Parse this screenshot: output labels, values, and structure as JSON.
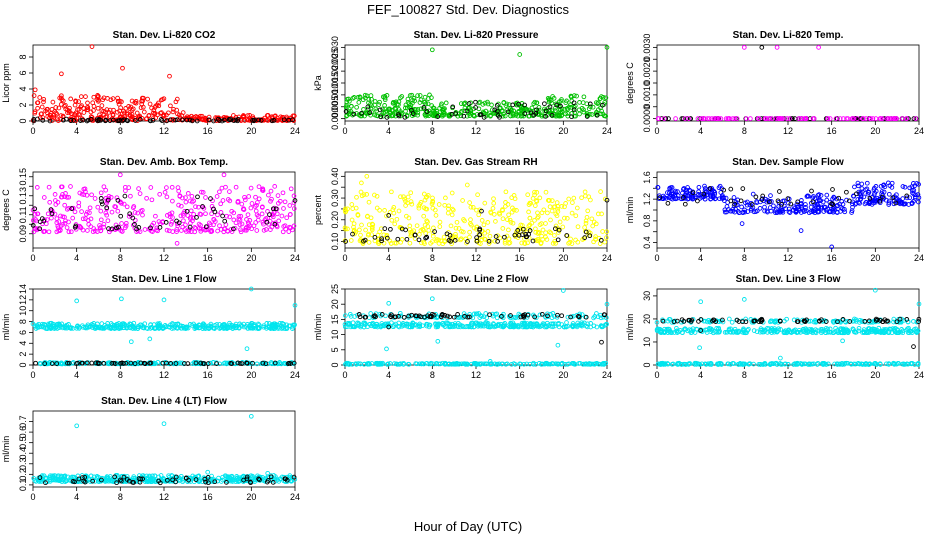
{
  "figure": {
    "title": "FEF_100827  Std. Dev. Diagnostics",
    "xlabel": "Hour of Day (UTC)"
  },
  "chart_data": [
    {
      "type": "scatter",
      "title": "Stan. Dev. Li-820 CO2",
      "ylabel": "Licor ppm",
      "xlim": [
        0,
        24
      ],
      "ylim": [
        0,
        9.5
      ],
      "xticks": [
        0,
        4,
        8,
        12,
        16,
        20,
        24
      ],
      "yticks": [
        0,
        2,
        4,
        6,
        8
      ],
      "ytick_labels": [
        "0",
        "2",
        "4",
        "6",
        "8"
      ],
      "series": [
        {
          "color": "#ff0000",
          "segments": [
            {
              "x0": 0,
              "x1": 6,
              "lo": 0.05,
              "hi": 3.2,
              "n": 110
            },
            {
              "x0": 6,
              "x1": 14,
              "lo": 0.05,
              "hi": 3.0,
              "n": 140
            },
            {
              "x0": 14,
              "x1": 24,
              "lo": 0.05,
              "hi": 0.7,
              "n": 130
            }
          ],
          "outliers": [
            [
              5.4,
              9.3
            ],
            [
              8.2,
              6.6
            ],
            [
              2.6,
              5.9
            ],
            [
              12.5,
              5.6
            ],
            [
              0.2,
              3.9
            ]
          ]
        },
        {
          "color": "#000000",
          "segments": [
            {
              "x0": 0,
              "x1": 24,
              "lo": 0.0,
              "hi": 0.25,
              "n": 70
            }
          ],
          "outliers": []
        }
      ]
    },
    {
      "type": "scatter",
      "title": "Stan. Dev. Li-820 Pressure",
      "ylabel": "kPa",
      "xlim": [
        0,
        24
      ],
      "ylim": [
        -0.001,
        0.031
      ],
      "xticks": [
        0,
        4,
        8,
        12,
        16,
        20,
        24
      ],
      "yticks": [
        0,
        0.005,
        0.01,
        0.015,
        0.02,
        0.025,
        0.03
      ],
      "ytick_labels": [
        "0.000",
        "0.005",
        "0.010",
        "0.015",
        "0.020",
        "0.025",
        "0.030"
      ],
      "series": [
        {
          "color": "#00c000",
          "segments": [
            {
              "x0": 0,
              "x1": 8,
              "lo": 0.001,
              "hi": 0.01,
              "n": 160
            },
            {
              "x0": 8,
              "x1": 18,
              "lo": 0.001,
              "hi": 0.007,
              "n": 170
            },
            {
              "x0": 18,
              "x1": 24,
              "lo": 0.001,
              "hi": 0.01,
              "n": 110
            }
          ],
          "outliers": [
            [
              8.0,
              0.029
            ],
            [
              16.0,
              0.027
            ],
            [
              24.0,
              0.03
            ]
          ]
        },
        {
          "color": "#000000",
          "segments": [
            {
              "x0": 0,
              "x1": 24,
              "lo": 0.0005,
              "hi": 0.0075,
              "n": 55
            }
          ],
          "outliers": []
        }
      ]
    },
    {
      "type": "scatter",
      "title": "Stan. Dev. Li-820 Temp.",
      "ylabel": "degrees C",
      "xlim": [
        0,
        24
      ],
      "ylim": [
        -0.0001,
        0.0031
      ],
      "xticks": [
        0,
        4,
        8,
        12,
        16,
        20,
        24
      ],
      "yticks": [
        0,
        0.0005,
        0.001,
        0.0015,
        0.002,
        0.0025,
        0.003
      ],
      "ytick_labels": [
        "0.0000",
        "",
        "0.0010",
        "",
        "0.0020",
        "",
        "0.0030"
      ],
      "series": [
        {
          "color": "#000000",
          "segments": [
            {
              "x0": 0,
              "x1": 24,
              "lo": 0.0,
              "hi": 0.0,
              "n": 60
            }
          ],
          "outliers": [
            [
              9.6,
              0.003
            ]
          ]
        },
        {
          "color": "#ff00ff",
          "segments": [
            {
              "x0": 0,
              "x1": 24,
              "lo": 0.0,
              "hi": 0.0,
              "n": 100
            }
          ],
          "outliers": [
            [
              8.0,
              0.003
            ],
            [
              11.0,
              0.003
            ],
            [
              14.8,
              0.003
            ],
            [
              0.1,
              0.0
            ]
          ]
        }
      ]
    },
    {
      "type": "scatter",
      "title": "Stan. Dev. Amb. Box Temp.",
      "ylabel": "degrees C",
      "xlim": [
        0,
        24
      ],
      "ylim": [
        0.075,
        0.155
      ],
      "xticks": [
        0,
        4,
        8,
        12,
        16,
        20,
        24
      ],
      "yticks": [
        0.09,
        0.1,
        0.11,
        0.12,
        0.13,
        0.14,
        0.15
      ],
      "ytick_labels": [
        "0.09",
        "",
        "0.11",
        "",
        "0.13",
        "",
        "0.15"
      ],
      "series": [
        {
          "color": "#ff00ff",
          "segments": [
            {
              "x0": 0,
              "x1": 24,
              "lo": 0.092,
              "hi": 0.14,
              "n": 420
            }
          ],
          "outliers": [
            [
              8.0,
              0.152
            ],
            [
              13.2,
              0.08
            ],
            [
              17.5,
              0.152
            ]
          ]
        },
        {
          "color": "#000000",
          "segments": [
            {
              "x0": 0,
              "x1": 24,
              "lo": 0.095,
              "hi": 0.13,
              "n": 50
            }
          ],
          "outliers": [
            [
              24.0,
              0.125
            ]
          ]
        }
      ]
    },
    {
      "type": "scatter",
      "title": "Stan. Dev. Gas Stream RH",
      "ylabel": "percent",
      "xlim": [
        0,
        24
      ],
      "ylim": [
        0.07,
        0.42
      ],
      "xticks": [
        0,
        4,
        8,
        12,
        16,
        20,
        24
      ],
      "yticks": [
        0.1,
        0.15,
        0.2,
        0.25,
        0.3,
        0.35,
        0.4
      ],
      "ytick_labels": [
        "0.10",
        "",
        "0.20",
        "",
        "0.30",
        "",
        "0.40"
      ],
      "series": [
        {
          "color": "#ffff00",
          "segments": [
            {
              "x0": 0,
              "x1": 24,
              "lo": 0.09,
              "hi": 0.33,
              "n": 420
            }
          ],
          "outliers": [
            [
              2.0,
              0.4
            ],
            [
              1.5,
              0.37
            ],
            [
              11.2,
              0.36
            ]
          ]
        },
        {
          "color": "#000000",
          "segments": [
            {
              "x0": 0,
              "x1": 24,
              "lo": 0.1,
              "hi": 0.16,
              "n": 55
            }
          ],
          "outliers": [
            [
              24.0,
              0.29
            ],
            [
              4.0,
              0.22
            ],
            [
              12.5,
              0.24
            ]
          ]
        }
      ]
    },
    {
      "type": "scatter",
      "title": "Stan. Dev. Sample Flow",
      "ylabel": "ml/min",
      "xlim": [
        0,
        24
      ],
      "ylim": [
        0.3,
        1.7
      ],
      "xticks": [
        0,
        4,
        8,
        12,
        16,
        20,
        24
      ],
      "yticks": [
        0.4,
        0.6,
        0.8,
        1.0,
        1.2,
        1.4,
        1.6
      ],
      "ytick_labels": [
        "0.4",
        "",
        "0.8",
        "",
        "1.2",
        "",
        "1.6"
      ],
      "series": [
        {
          "color": "#0000ff",
          "segments": [
            {
              "x0": 0,
              "x1": 6,
              "lo": 1.2,
              "hi": 1.45,
              "n": 110
            },
            {
              "x0": 6,
              "x1": 18,
              "lo": 0.95,
              "hi": 1.3,
              "n": 190
            },
            {
              "x0": 18,
              "x1": 24,
              "lo": 1.1,
              "hi": 1.5,
              "n": 120
            }
          ],
          "outliers": [
            [
              16.0,
              0.32
            ],
            [
              13.2,
              0.62
            ],
            [
              7.8,
              0.75
            ]
          ]
        },
        {
          "color": "#000000",
          "segments": [
            {
              "x0": 0,
              "x1": 24,
              "lo": 1.1,
              "hi": 1.4,
              "n": 40
            }
          ],
          "outliers": []
        }
      ]
    },
    {
      "type": "scatter",
      "title": "Stan. Dev. Line 1 Flow",
      "ylabel": "ml/min",
      "xlim": [
        0,
        24
      ],
      "ylim": [
        0,
        14
      ],
      "xticks": [
        0,
        4,
        8,
        12,
        16,
        20,
        24
      ],
      "yticks": [
        0,
        2,
        4,
        6,
        8,
        10,
        12,
        14
      ],
      "ytick_labels": [
        "0",
        "2",
        "4",
        "6",
        "8",
        "10",
        "12",
        "14"
      ],
      "series": [
        {
          "color": "#00e5ee",
          "segments": [
            {
              "x0": 0,
              "x1": 24,
              "lo": 6.7,
              "hi": 7.7,
              "n": 380
            },
            {
              "x0": 0,
              "x1": 24,
              "lo": 0.2,
              "hi": 0.5,
              "n": 200
            }
          ],
          "outliers": [
            [
              4.0,
              11.8
            ],
            [
              8.1,
              12.2
            ],
            [
              12.0,
              12.0
            ],
            [
              20.0,
              14.0
            ],
            [
              24.0,
              11.0
            ],
            [
              9.0,
              4.3
            ],
            [
              19.6,
              3.0
            ],
            [
              10.7,
              4.8
            ]
          ]
        },
        {
          "color": "#000000",
          "segments": [
            {
              "x0": 0,
              "x1": 24,
              "lo": 0.25,
              "hi": 0.4,
              "n": 60
            }
          ],
          "outliers": []
        }
      ]
    },
    {
      "type": "scatter",
      "title": "Stan. Dev. Line 2 Flow",
      "ylabel": "ml/min",
      "xlim": [
        0,
        24
      ],
      "ylim": [
        0,
        25
      ],
      "xticks": [
        0,
        4,
        8,
        12,
        16,
        20,
        24
      ],
      "yticks": [
        0,
        5,
        10,
        15,
        20,
        25
      ],
      "ytick_labels": [
        "0",
        "5",
        "10",
        "15",
        "20",
        "25"
      ],
      "series": [
        {
          "color": "#00e5ee",
          "segments": [
            {
              "x0": 0,
              "x1": 24,
              "lo": 12.5,
              "hi": 14.0,
              "n": 300
            },
            {
              "x0": 0,
              "x1": 24,
              "lo": 15.5,
              "hi": 17.0,
              "n": 120
            },
            {
              "x0": 0,
              "x1": 24,
              "lo": 0.2,
              "hi": 0.6,
              "n": 200
            }
          ],
          "outliers": [
            [
              4.0,
              20.3
            ],
            [
              8.0,
              21.8
            ],
            [
              20.0,
              24.5
            ],
            [
              24.0,
              20.0
            ],
            [
              3.8,
              5.3
            ],
            [
              8.5,
              7.8
            ],
            [
              13.3,
              1.2
            ],
            [
              19.5,
              6.5
            ]
          ]
        },
        {
          "color": "#000000",
          "segments": [
            {
              "x0": 0,
              "x1": 24,
              "lo": 15.7,
              "hi": 16.7,
              "n": 60
            }
          ],
          "outliers": [
            [
              4.0,
              12.5
            ],
            [
              23.5,
              7.5
            ]
          ]
        }
      ]
    },
    {
      "type": "scatter",
      "title": "Stan. Dev. Line 3 Flow",
      "ylabel": "ml/min",
      "xlim": [
        0,
        24
      ],
      "ylim": [
        0,
        33
      ],
      "xticks": [
        0,
        4,
        8,
        12,
        16,
        20,
        24
      ],
      "yticks": [
        0,
        10,
        20,
        30
      ],
      "ytick_labels": [
        "0",
        "10",
        "20",
        "30"
      ],
      "series": [
        {
          "color": "#00e5ee",
          "segments": [
            {
              "x0": 0,
              "x1": 24,
              "lo": 14.0,
              "hi": 16.0,
              "n": 300
            },
            {
              "x0": 0,
              "x1": 24,
              "lo": 18.5,
              "hi": 20.0,
              "n": 120
            },
            {
              "x0": 0,
              "x1": 24,
              "lo": 0.2,
              "hi": 0.8,
              "n": 200
            }
          ],
          "outliers": [
            [
              4.0,
              27.5
            ],
            [
              8.0,
              28.5
            ],
            [
              20.0,
              32.5
            ],
            [
              24.0,
              26.5
            ],
            [
              3.9,
              7.5
            ],
            [
              11.3,
              3.0
            ],
            [
              17.0,
              10.5
            ]
          ]
        },
        {
          "color": "#000000",
          "segments": [
            {
              "x0": 0,
              "x1": 24,
              "lo": 18.8,
              "hi": 20.0,
              "n": 60
            }
          ],
          "outliers": [
            [
              4.0,
              15.0
            ],
            [
              23.5,
              8.0
            ]
          ]
        }
      ]
    },
    {
      "type": "scatter",
      "title": "Stan. Dev. Line 4 (LT) Flow",
      "ylabel": "ml/min",
      "xlim": [
        0,
        24
      ],
      "ylim": [
        0.08,
        0.8
      ],
      "xticks": [
        0,
        4,
        8,
        12,
        16,
        20,
        24
      ],
      "yticks": [
        0.1,
        0.2,
        0.3,
        0.4,
        0.5,
        0.6,
        0.7
      ],
      "ytick_labels": [
        "0.1",
        "0.2",
        "0.3",
        "0.4",
        "0.5",
        "0.6",
        "0.7"
      ],
      "series": [
        {
          "color": "#00e5ee",
          "segments": [
            {
              "x0": 0,
              "x1": 24,
              "lo": 0.13,
              "hi": 0.19,
              "n": 420
            }
          ],
          "outliers": [
            [
              4.0,
              0.66
            ],
            [
              12.0,
              0.68
            ],
            [
              20.0,
              0.75
            ],
            [
              21.5,
              0.21
            ],
            [
              16.0,
              0.22
            ]
          ]
        },
        {
          "color": "#000000",
          "segments": [
            {
              "x0": 0,
              "x1": 24,
              "lo": 0.12,
              "hi": 0.18,
              "n": 55
            }
          ],
          "outliers": []
        }
      ]
    }
  ]
}
